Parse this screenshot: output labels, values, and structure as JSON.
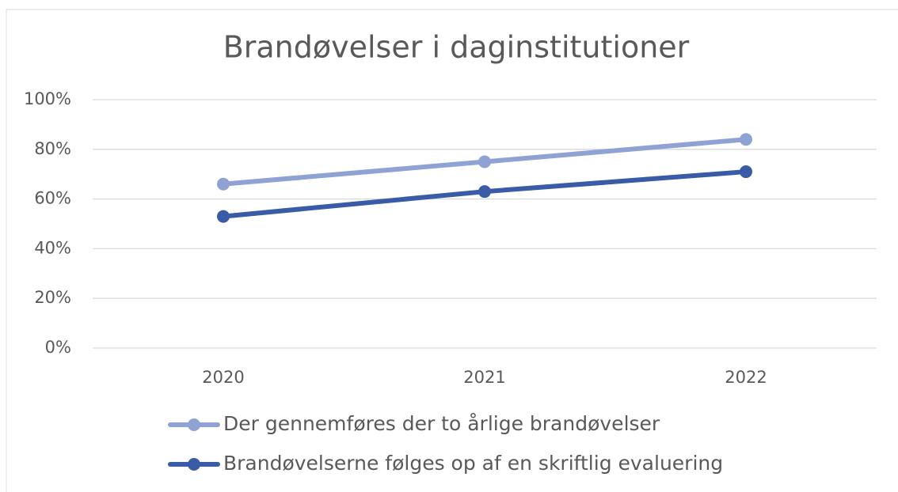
{
  "chart_data": {
    "type": "line",
    "title": "Brandøvelser i daginstitutioner",
    "categories": [
      "2020",
      "2021",
      "2022"
    ],
    "series": [
      {
        "name": "Der gennemføres der to årlige brandøvelser",
        "color": "#8fa2d4",
        "values": [
          66,
          75,
          84
        ]
      },
      {
        "name": "Brandøvelserne følges op af en skriftlig evaluering",
        "color": "#3a5ba6",
        "values": [
          53,
          63,
          71
        ]
      }
    ],
    "ylim": [
      0,
      100
    ],
    "yticks": [
      {
        "value": 0,
        "label": "0%"
      },
      {
        "value": 20,
        "label": "20%"
      },
      {
        "value": 40,
        "label": "40%"
      },
      {
        "value": 60,
        "label": "60%"
      },
      {
        "value": 80,
        "label": "80%"
      },
      {
        "value": 100,
        "label": "100%"
      }
    ],
    "grid": true,
    "legend": "bottom"
  }
}
